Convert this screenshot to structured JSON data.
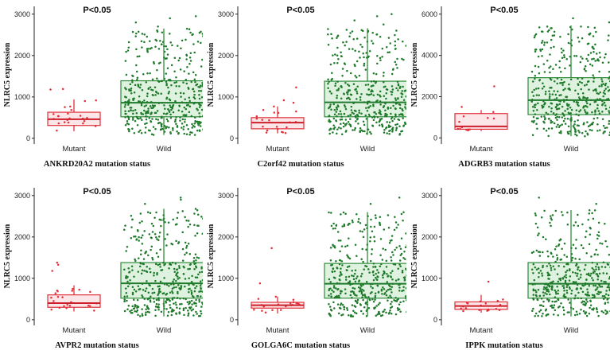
{
  "colors": {
    "mutant_stroke": "#e0303a",
    "mutant_fill": "#fde6e8",
    "mutant_median": "#cc1f2a",
    "mutant_point": "#e0303a",
    "wild_stroke": "#2e8b3a",
    "wild_fill": "#dff2df",
    "wild_median": "#1f7a2c",
    "wild_point": "#1e7a2a",
    "axis": "#222222"
  },
  "chart_data": [
    {
      "type": "box-jitter",
      "title": "P<0.05",
      "ylabel": "NLRC5 expression",
      "xlabel": "ANKRD20A2 mutation status",
      "categories": [
        "Mutant",
        "Wild"
      ],
      "yticks": [
        0,
        1000,
        2000,
        3000
      ],
      "ylim": [
        -80,
        3150
      ],
      "series": [
        {
          "name": "Mutant",
          "q1": 310,
          "median": 460,
          "q3": 630,
          "whisker_low": 170,
          "whisker_high": 940,
          "n_points": 22,
          "outliers": [
            1180,
            1190
          ]
        },
        {
          "name": "Wild",
          "q1": 520,
          "median": 860,
          "q3": 1390,
          "whisker_low": 80,
          "whisker_high": 2650,
          "n_points": 430,
          "outliers": [
            2700,
            2800,
            2900,
            2950
          ]
        }
      ]
    },
    {
      "type": "box-jitter",
      "title": "P<0.05",
      "ylabel": "NLRC5 expression",
      "xlabel": "C2orf42 mutation status",
      "categories": [
        "Mutant",
        "Wild"
      ],
      "yticks": [
        0,
        1000,
        2000,
        3000
      ],
      "ylim": [
        -80,
        3150
      ],
      "series": [
        {
          "name": "Mutant",
          "q1": 230,
          "median": 380,
          "q3": 500,
          "whisker_low": 120,
          "whisker_high": 770,
          "n_points": 20,
          "outliers": [
            860,
            920,
            1230
          ]
        },
        {
          "name": "Wild",
          "q1": 520,
          "median": 870,
          "q3": 1380,
          "whisker_low": 80,
          "whisker_high": 2660,
          "n_points": 430,
          "outliers": [
            2750,
            2850,
            2950,
            3000
          ]
        }
      ]
    },
    {
      "type": "box-jitter",
      "title": "P<0.05",
      "ylabel": "NLRC5 expression",
      "xlabel": "ADGRB3 mutation status",
      "categories": [
        "Mutant",
        "Wild"
      ],
      "yticks": [
        0,
        2000,
        4000,
        6000
      ],
      "ylim": [
        -180,
        6300
      ],
      "series": [
        {
          "name": "Mutant",
          "q1": 420,
          "median": 560,
          "q3": 1180,
          "whisker_low": 330,
          "whisker_high": 1350,
          "n_points": 12,
          "outliers": [
            1500,
            2500
          ]
        },
        {
          "name": "Wild",
          "q1": 1130,
          "median": 1830,
          "q3": 2920,
          "whisker_low": 80,
          "whisker_high": 5450,
          "n_points": 430,
          "outliers": [
            5600,
            5800
          ]
        }
      ]
    },
    {
      "type": "box-jitter",
      "title": "P<0.05",
      "ylabel": "NLRC5 expression",
      "xlabel": "AVPR2 mutation status",
      "categories": [
        "Mutant",
        "Wild"
      ],
      "yticks": [
        0,
        1000,
        2000,
        3000
      ],
      "ylim": [
        -80,
        3150
      ],
      "series": [
        {
          "name": "Mutant",
          "q1": 300,
          "median": 400,
          "q3": 600,
          "whisker_low": 200,
          "whisker_high": 830,
          "n_points": 22,
          "outliers": [
            1180,
            1330,
            1380
          ]
        },
        {
          "name": "Wild",
          "q1": 520,
          "median": 880,
          "q3": 1380,
          "whisker_low": 80,
          "whisker_high": 2680,
          "n_points": 430,
          "outliers": [
            2800,
            2900,
            2950
          ]
        }
      ]
    },
    {
      "type": "box-jitter",
      "title": "P<0.05",
      "ylabel": "NLRC5 expression",
      "xlabel": "GOLGA6C mutation status",
      "categories": [
        "Mutant",
        "Wild"
      ],
      "yticks": [
        0,
        1000,
        2000,
        3000
      ],
      "ylim": [
        -80,
        3150
      ],
      "series": [
        {
          "name": "Mutant",
          "q1": 280,
          "median": 350,
          "q3": 420,
          "whisker_low": 150,
          "whisker_high": 560,
          "n_points": 20,
          "outliers": [
            880,
            1730
          ]
        },
        {
          "name": "Wild",
          "q1": 520,
          "median": 870,
          "q3": 1360,
          "whisker_low": 80,
          "whisker_high": 2600,
          "n_points": 430,
          "outliers": [
            2800,
            2950
          ]
        }
      ]
    },
    {
      "type": "box-jitter",
      "title": "P<0.05",
      "ylabel": "NLRC5 expression",
      "xlabel": "IPPK mutation status",
      "categories": [
        "Mutant",
        "Wild"
      ],
      "yticks": [
        0,
        1000,
        2000,
        3000
      ],
      "ylim": [
        -80,
        3150
      ],
      "series": [
        {
          "name": "Mutant",
          "q1": 250,
          "median": 330,
          "q3": 430,
          "whisker_low": 170,
          "whisker_high": 600,
          "n_points": 18,
          "outliers": [
            920
          ]
        },
        {
          "name": "Wild",
          "q1": 520,
          "median": 870,
          "q3": 1380,
          "whisker_low": 80,
          "whisker_high": 2650,
          "n_points": 430,
          "outliers": [
            2800,
            2950
          ]
        }
      ]
    }
  ]
}
